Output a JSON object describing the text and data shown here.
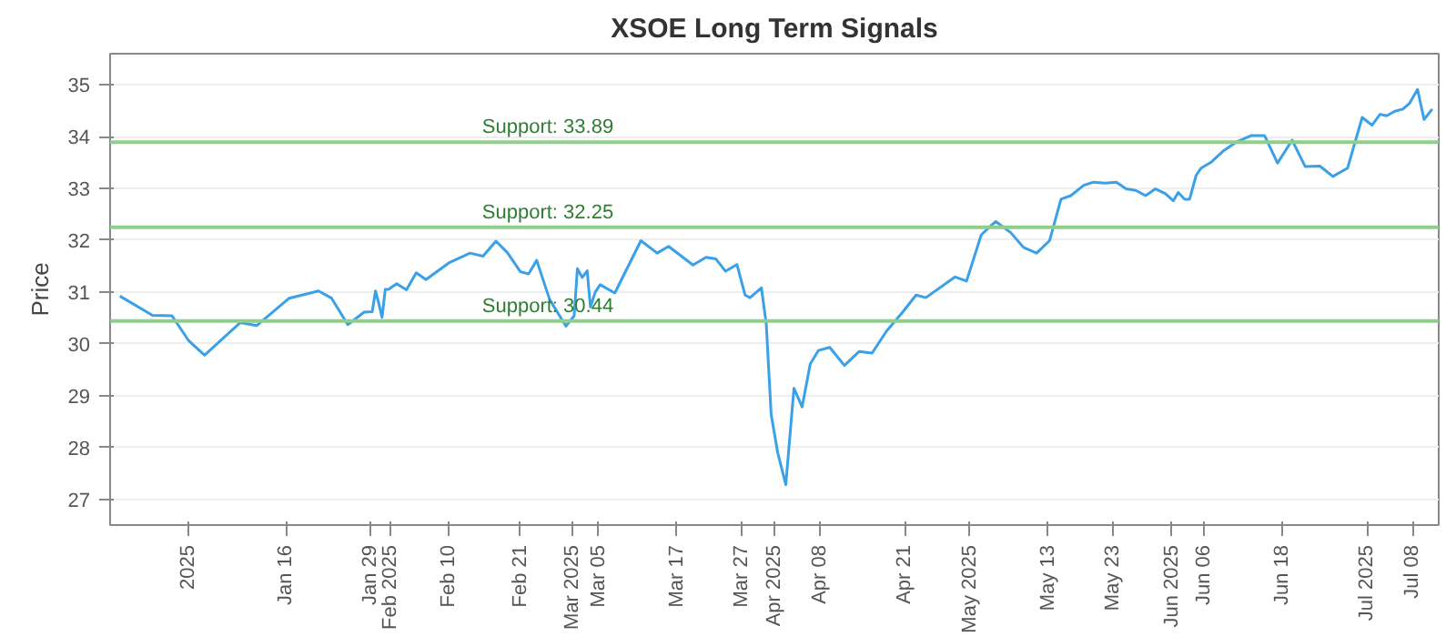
{
  "chart_data": {
    "type": "line",
    "title": "XSOE Long Term Signals",
    "ylabel": "Price",
    "x": [
      "2024-12-21T12:00",
      "2024-12-26T12:00",
      "2024-12-29T12:00",
      "2025-01-01",
      "2025-01-03T12:00",
      "2025-01-09",
      "2025-01-11T12:00",
      "2025-01-16T12:00",
      "2025-01-21",
      "2025-01-23",
      "2025-01-25T12:00",
      "2025-01-28",
      "2025-01-29T06:00",
      "2025-01-29T18:00",
      "2025-01-30T06:00",
      "2025-01-30T18:00",
      "2025-01-31T06:00",
      "2025-01-31T18:00",
      "2025-02-02",
      "2025-02-03T12:00",
      "2025-02-05",
      "2025-02-06T12:00",
      "2025-02-10",
      "2025-02-13T06:00",
      "2025-02-15T06:00",
      "2025-02-17T06:00",
      "2025-02-19",
      "2025-02-21",
      "2025-02-22T06:00",
      "2025-02-23T12:00",
      "2025-02-25T12:00",
      "2025-02-28",
      "2025-03-01T06:00",
      "2025-03-01T18:00",
      "2025-03-02T12:00",
      "2025-03-03T06:00",
      "2025-03-03T18:00",
      "2025-03-04T12:00",
      "2025-03-05T06:00",
      "2025-03-07T12:00",
      "2025-03-11T12:00",
      "2025-03-14",
      "2025-03-15T18:00",
      "2025-03-19T12:00",
      "2025-03-21T12:00",
      "2025-03-23",
      "2025-03-24T12:00",
      "2025-03-26T06:00",
      "2025-03-27T12:00",
      "2025-03-28T06:00",
      "2025-03-30",
      "2025-03-30T18:00",
      "2025-03-31T12:00",
      "2025-04-01T12:00",
      "2025-04-02T18:00",
      "2025-04-04",
      "2025-04-05T06:00",
      "2025-04-06T12:00",
      "2025-04-07T18:00",
      "2025-04-09T12:00",
      "2025-04-11T18:00",
      "2025-04-14",
      "2025-04-16",
      "2025-04-18T06:00",
      "2025-04-20T18:00",
      "2025-04-22T18:00",
      "2025-04-24T06:00",
      "2025-04-28T18:00",
      "2025-04-30T12:00",
      "2025-05-02T18:00",
      "2025-05-04T06:00",
      "2025-05-05",
      "2025-05-07T06:00",
      "2025-05-09T06:00",
      "2025-05-11T06:00",
      "2025-05-13T06:00",
      "2025-05-15",
      "2025-05-16T12:00",
      "2025-05-18T12:00",
      "2025-05-20",
      "2025-05-21T18:00",
      "2025-05-23T12:00",
      "2025-05-25",
      "2025-05-26T12:00",
      "2025-05-28",
      "2025-05-29T12:00",
      "2025-05-31",
      "2025-06-01T06:00",
      "2025-06-02",
      "2025-06-03",
      "2025-06-03T18:00",
      "2025-06-04T18:00",
      "2025-06-05T12:00",
      "2025-06-07",
      "2025-06-09",
      "2025-06-11",
      "2025-06-13T06:00",
      "2025-06-15T06:00",
      "2025-06-17T06:00",
      "2025-06-19T12:00",
      "2025-06-21T12:00",
      "2025-06-23T18:00",
      "2025-06-25T18:00",
      "2025-06-28",
      "2025-06-30T06:00",
      "2025-07-01T18:00",
      "2025-07-03",
      "2025-07-04",
      "2025-07-05T06:00",
      "2025-07-06T12:00",
      "2025-07-07T12:00",
      "2025-07-08T18:00",
      "2025-07-09T18:00",
      "2025-07-11"
    ],
    "series": [
      {
        "color": "#3aa0e8",
        "values": [
          30.92,
          30.55,
          30.54,
          30.07,
          29.78,
          30.41,
          30.35,
          30.88,
          31.02,
          30.88,
          30.37,
          30.61,
          30.62,
          31.02,
          30.78,
          30.51,
          31.05,
          31.05,
          31.16,
          31.04,
          31.37,
          31.24,
          31.56,
          31.75,
          31.69,
          31.98,
          31.76,
          31.39,
          31.35,
          31.61,
          30.85,
          30.34,
          30.54,
          31.45,
          31.28,
          31.41,
          30.71,
          31.0,
          31.14,
          30.98,
          31.99,
          31.75,
          31.88,
          31.52,
          31.67,
          31.64,
          31.4,
          31.53,
          30.94,
          30.89,
          31.08,
          30.38,
          28.64,
          27.9,
          27.28,
          29.14,
          28.78,
          29.61,
          29.87,
          29.93,
          29.58,
          29.85,
          29.82,
          30.25,
          30.62,
          30.94,
          30.89,
          31.29,
          31.21,
          32.1,
          32.28,
          32.36,
          32.15,
          31.86,
          31.75,
          31.99,
          32.79,
          32.86,
          33.06,
          33.12,
          33.1,
          33.12,
          32.99,
          32.96,
          32.86,
          32.99,
          32.9,
          32.76,
          32.92,
          32.79,
          32.79,
          33.25,
          33.39,
          33.5,
          33.73,
          33.9,
          34.02,
          34.02,
          33.49,
          33.93,
          33.42,
          33.43,
          33.23,
          33.39,
          34.37,
          34.22,
          34.43,
          34.4,
          34.49,
          34.53,
          34.64,
          34.91,
          34.33,
          34.53
        ]
      }
    ],
    "xlim": [
      "2024-12-20",
      "2025-07-12"
    ],
    "xticks": [
      {
        "value": "2025-01-01",
        "label": "2025"
      },
      {
        "value": "2025-01-16",
        "label": "Jan 16"
      },
      {
        "value": "2025-01-29",
        "label": "Jan 29"
      },
      {
        "value": "2025-02-01",
        "label": "Feb 2025"
      },
      {
        "value": "2025-02-10",
        "label": "Feb 10"
      },
      {
        "value": "2025-02-21",
        "label": "Feb 21"
      },
      {
        "value": "2025-03-01",
        "label": "Mar 2025"
      },
      {
        "value": "2025-03-05",
        "label": "Mar 05"
      },
      {
        "value": "2025-03-17",
        "label": "Mar 17"
      },
      {
        "value": "2025-03-27",
        "label": "Mar 27"
      },
      {
        "value": "2025-04-01",
        "label": "Apr 2025"
      },
      {
        "value": "2025-04-08",
        "label": "Apr 08"
      },
      {
        "value": "2025-04-21",
        "label": "Apr 21"
      },
      {
        "value": "2025-05-01",
        "label": "May 2025"
      },
      {
        "value": "2025-05-13",
        "label": "May 13"
      },
      {
        "value": "2025-05-23",
        "label": "May 23"
      },
      {
        "value": "2025-06-01",
        "label": "Jun 2025"
      },
      {
        "value": "2025-06-06",
        "label": "Jun 06"
      },
      {
        "value": "2025-06-18",
        "label": "Jun 18"
      },
      {
        "value": "2025-07-01",
        "label": "Jul 2025"
      },
      {
        "value": "2025-07-08",
        "label": "Jul 08"
      }
    ],
    "ylim": [
      26.5,
      35.6
    ],
    "yticks": [
      27,
      28,
      29,
      30,
      31,
      32,
      33,
      34,
      35
    ],
    "ref_lines": [
      {
        "axis": "y",
        "value": 33.89,
        "label": "Support: 33.89",
        "color": "#8fcf8a"
      },
      {
        "axis": "y",
        "value": 32.25,
        "label": "Support: 32.25",
        "color": "#8fcf8a"
      },
      {
        "axis": "y",
        "value": 30.44,
        "label": "Support: 30.44",
        "color": "#8fcf8a"
      }
    ],
    "grid": "y",
    "marker": "none",
    "line_style": "solid"
  }
}
